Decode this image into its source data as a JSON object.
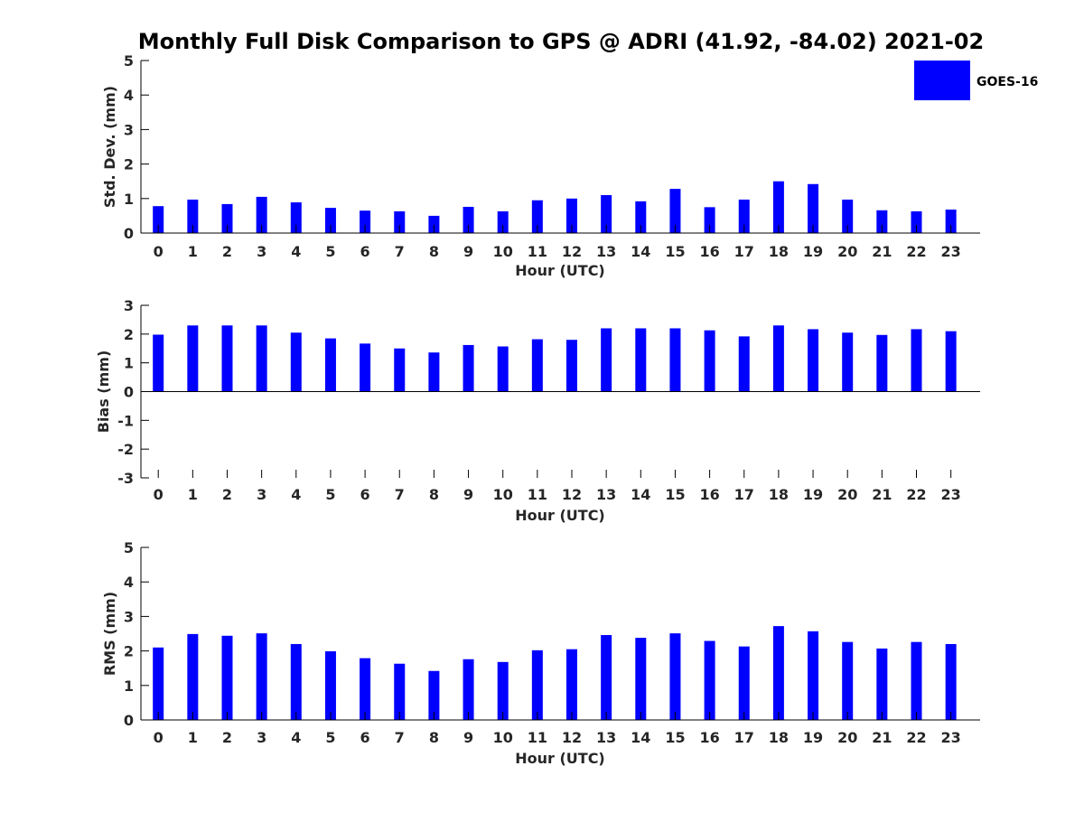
{
  "figure": {
    "title": "Monthly Full Disk Comparison to GPS @ ADRI (41.92, -84.02) 2021-02",
    "legend": {
      "label": "GOES-16",
      "color": "#0000ff",
      "placement": "top-right"
    }
  },
  "chart_data": [
    {
      "type": "bar",
      "categories": [
        "0",
        "1",
        "2",
        "3",
        "4",
        "5",
        "6",
        "7",
        "8",
        "9",
        "10",
        "11",
        "12",
        "13",
        "14",
        "15",
        "16",
        "17",
        "18",
        "19",
        "20",
        "21",
        "22",
        "23"
      ],
      "series": [
        {
          "name": "GOES-16",
          "color": "#0000ff",
          "values": [
            0.78,
            0.97,
            0.84,
            1.05,
            0.89,
            0.73,
            0.65,
            0.63,
            0.5,
            0.76,
            0.63,
            0.95,
            1.0,
            1.1,
            0.92,
            1.28,
            0.75,
            0.97,
            1.5,
            1.42,
            0.97,
            0.66,
            0.63,
            0.68
          ]
        }
      ],
      "xlabel": "Hour (UTC)",
      "ylabel": "Std. Dev. (mm)",
      "ylim": [
        0,
        5
      ],
      "yticks": [
        0,
        1,
        2,
        3,
        4,
        5
      ],
      "grid": false
    },
    {
      "type": "bar",
      "categories": [
        "0",
        "1",
        "2",
        "3",
        "4",
        "5",
        "6",
        "7",
        "8",
        "9",
        "10",
        "11",
        "12",
        "13",
        "14",
        "15",
        "16",
        "17",
        "18",
        "19",
        "20",
        "21",
        "22",
        "23"
      ],
      "series": [
        {
          "name": "GOES-16",
          "color": "#0000ff",
          "values": [
            1.98,
            2.3,
            2.3,
            2.3,
            2.05,
            1.85,
            1.67,
            1.5,
            1.36,
            1.62,
            1.57,
            1.82,
            1.8,
            2.2,
            2.2,
            2.2,
            2.13,
            1.92,
            2.3,
            2.17,
            2.05,
            1.97,
            2.17,
            2.1
          ]
        }
      ],
      "xlabel": "Hour (UTC)",
      "ylabel": "Bias (mm)",
      "ylim": [
        -3,
        3
      ],
      "yticks": [
        -3,
        -2,
        -1,
        0,
        1,
        2,
        3
      ],
      "grid": false
    },
    {
      "type": "bar",
      "categories": [
        "0",
        "1",
        "2",
        "3",
        "4",
        "5",
        "6",
        "7",
        "8",
        "9",
        "10",
        "11",
        "12",
        "13",
        "14",
        "15",
        "16",
        "17",
        "18",
        "19",
        "20",
        "21",
        "22",
        "23"
      ],
      "series": [
        {
          "name": "GOES-16",
          "color": "#0000ff",
          "values": [
            2.1,
            2.49,
            2.44,
            2.51,
            2.2,
            1.99,
            1.79,
            1.63,
            1.42,
            1.76,
            1.68,
            2.02,
            2.05,
            2.46,
            2.38,
            2.51,
            2.29,
            2.13,
            2.72,
            2.57,
            2.26,
            2.07,
            2.26,
            2.2
          ]
        }
      ],
      "xlabel": "Hour (UTC)",
      "ylabel": "RMS (mm)",
      "ylim": [
        0,
        5
      ],
      "yticks": [
        0,
        1,
        2,
        3,
        4,
        5
      ],
      "grid": false
    }
  ]
}
